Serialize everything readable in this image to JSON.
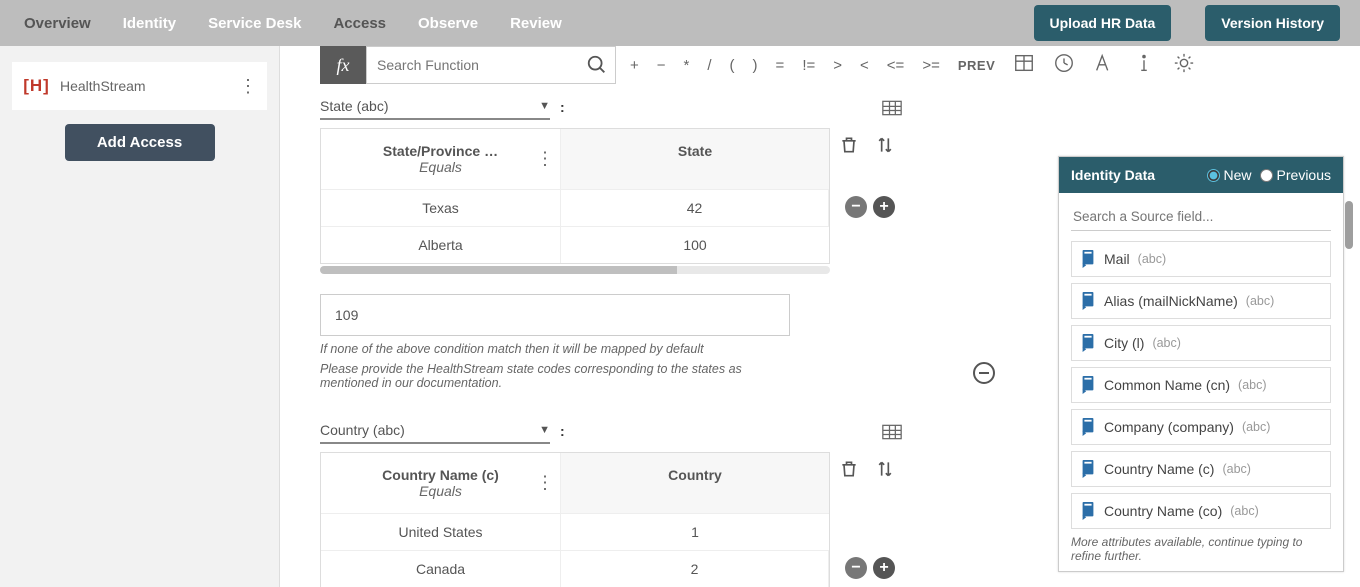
{
  "nav": {
    "tabs": [
      "Overview",
      "Identity",
      "Service Desk",
      "Access",
      "Observe",
      "Review"
    ],
    "active_index": 3,
    "dark_indices": [
      0,
      3
    ],
    "upload_btn": "Upload HR Data",
    "version_btn": "Version History"
  },
  "sidebar": {
    "app_name": "HealthStream",
    "app_initial": "H",
    "add_btn": "Add Access"
  },
  "fx": {
    "placeholder": "Search Function",
    "ops": [
      "+",
      "−",
      "*",
      "/",
      "(",
      ")",
      "=",
      "!=",
      ">",
      "<",
      "<=",
      ">="
    ],
    "prev": "PREV"
  },
  "blocks": [
    {
      "select_label": "State (abc)",
      "col1_title": "State/Province …",
      "col1_sub": "Equals",
      "col2_title": "State",
      "rows": [
        {
          "a": "Texas",
          "b": "42"
        },
        {
          "a": "Alberta",
          "b": "100"
        }
      ],
      "default_value": "109",
      "note1": "If none of the above condition match then it will be mapped by default",
      "note2": "Please provide the HealthStream state codes corresponding to the states as mentioned in our documentation."
    },
    {
      "select_label": "Country (abc)",
      "col1_title": "Country Name (c)",
      "col1_sub": "Equals",
      "col2_title": "Country",
      "rows": [
        {
          "a": "United States",
          "b": "1"
        },
        {
          "a": "Canada",
          "b": "2"
        }
      ]
    }
  ],
  "rightpanel": {
    "title": "Identity Data",
    "radio_new": "New",
    "radio_prev": "Previous",
    "search_placeholder": "Search a Source field...",
    "fields": [
      {
        "label": "Mail",
        "type": "(abc)"
      },
      {
        "label": "Alias (mailNickName)",
        "type": "(abc)"
      },
      {
        "label": "City (l)",
        "type": "(abc)"
      },
      {
        "label": "Common Name (cn)",
        "type": "(abc)"
      },
      {
        "label": "Company (company)",
        "type": "(abc)"
      },
      {
        "label": "Country Name (c)",
        "type": "(abc)"
      },
      {
        "label": "Country Name (co)",
        "type": "(abc)"
      }
    ],
    "more": "More attributes available, continue typing to refine further."
  }
}
